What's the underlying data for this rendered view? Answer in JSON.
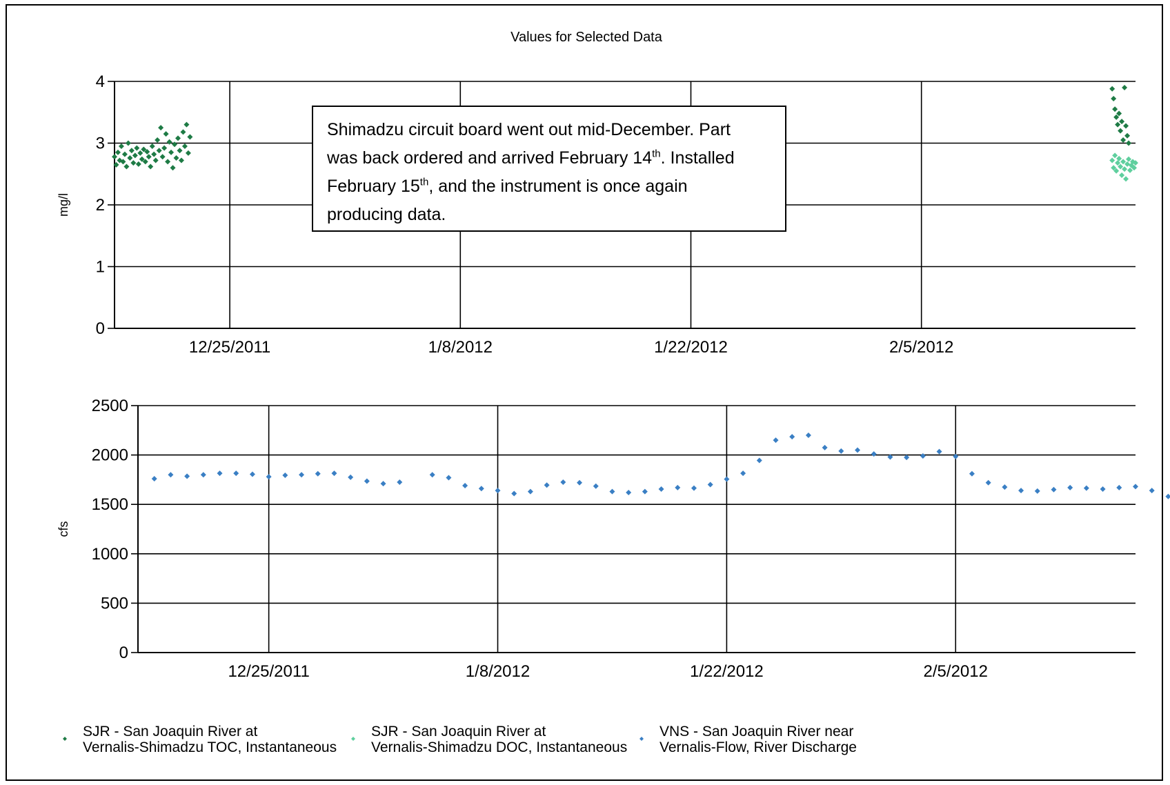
{
  "chart_data": [
    {
      "type": "scatter",
      "title": "Values for Selected Data",
      "ylabel": "mg/l",
      "ylim": [
        0,
        4
      ],
      "yticks": [
        "0",
        "1",
        "2",
        "3",
        "4"
      ],
      "xlim": [
        "2011-12-18",
        "2012-02-18"
      ],
      "xticks": [
        "12/25/2011",
        "1/8/2012",
        "1/22/2012",
        "2/5/2012"
      ],
      "xtick_dates": [
        "2011-12-25",
        "2012-01-08",
        "2012-01-22",
        "2012-02-05"
      ],
      "grid": true,
      "series": [
        {
          "name": "SJR - San Joaquin River at Vernalis-Shimadzu TOC, Instantaneous",
          "color": "#1e7b45",
          "points": [
            [
              "2011-12-18 00:00",
              2.78
            ],
            [
              "2011-12-18 02:30",
              2.65
            ],
            [
              "2011-12-18 05:00",
              2.85
            ],
            [
              "2011-12-18 07:30",
              2.72
            ],
            [
              "2011-12-18 10:00",
              2.95
            ],
            [
              "2011-12-18 12:30",
              2.7
            ],
            [
              "2011-12-18 15:00",
              2.82
            ],
            [
              "2011-12-18 17:30",
              2.62
            ],
            [
              "2011-12-18 20:00",
              3.0
            ],
            [
              "2011-12-18 22:30",
              2.76
            ],
            [
              "2011-12-19 01:00",
              2.88
            ],
            [
              "2011-12-19 03:30",
              2.68
            ],
            [
              "2011-12-19 06:00",
              2.8
            ],
            [
              "2011-12-19 08:30",
              2.92
            ],
            [
              "2011-12-19 11:00",
              2.66
            ],
            [
              "2011-12-19 13:30",
              2.84
            ],
            [
              "2011-12-19 16:00",
              2.74
            ],
            [
              "2011-12-19 18:30",
              2.9
            ],
            [
              "2011-12-19 21:00",
              2.7
            ],
            [
              "2011-12-19 23:30",
              2.86
            ],
            [
              "2011-12-20 02:00",
              2.78
            ],
            [
              "2011-12-20 04:30",
              2.62
            ],
            [
              "2011-12-20 07:00",
              2.95
            ],
            [
              "2011-12-20 09:30",
              2.82
            ],
            [
              "2011-12-20 12:00",
              2.72
            ],
            [
              "2011-12-20 14:30",
              3.05
            ],
            [
              "2011-12-20 17:00",
              2.88
            ],
            [
              "2011-12-20 19:30",
              3.25
            ],
            [
              "2011-12-20 22:00",
              2.78
            ],
            [
              "2011-12-21 00:30",
              2.92
            ],
            [
              "2011-12-21 03:00",
              3.15
            ],
            [
              "2011-12-21 05:30",
              2.7
            ],
            [
              "2011-12-21 08:00",
              3.02
            ],
            [
              "2011-12-21 10:30",
              2.85
            ],
            [
              "2011-12-21 13:00",
              2.6
            ],
            [
              "2011-12-21 15:30",
              2.98
            ],
            [
              "2011-12-21 18:00",
              2.76
            ],
            [
              "2011-12-21 20:30",
              3.08
            ],
            [
              "2011-12-21 23:00",
              2.88
            ],
            [
              "2011-12-22 01:30",
              2.72
            ],
            [
              "2011-12-22 04:00",
              3.18
            ],
            [
              "2011-12-22 06:30",
              2.95
            ],
            [
              "2011-12-22 09:00",
              3.3
            ],
            [
              "2011-12-22 11:30",
              2.84
            ],
            [
              "2011-12-22 14:00",
              3.1
            ]
          ]
        },
        {
          "name": "SJR - San Joaquin River at Vernalis-Shimadzu DOC, Instantaneous",
          "color": "#5fcf9e",
          "points": [
            [
              "2012-02-16 14:00",
              2.72
            ],
            [
              "2012-02-16 16:00",
              2.6
            ],
            [
              "2012-02-16 18:00",
              2.8
            ],
            [
              "2012-02-16 20:00",
              2.55
            ],
            [
              "2012-02-16 22:00",
              2.68
            ],
            [
              "2012-02-17 00:00",
              2.75
            ],
            [
              "2012-02-17 02:00",
              2.62
            ],
            [
              "2012-02-17 04:00",
              2.48
            ],
            [
              "2012-02-17 06:00",
              2.7
            ],
            [
              "2012-02-17 08:00",
              2.58
            ],
            [
              "2012-02-17 10:00",
              2.42
            ],
            [
              "2012-02-17 12:00",
              2.66
            ],
            [
              "2012-02-17 14:00",
              2.74
            ],
            [
              "2012-02-17 16:00",
              2.56
            ],
            [
              "2012-02-17 18:00",
              2.64
            ],
            [
              "2012-02-17 20:00",
              2.7
            ],
            [
              "2012-02-17 22:00",
              2.6
            ],
            [
              "2012-02-18 00:00",
              2.68
            ]
          ]
        },
        {
          "name": "SJR - San Joaquin River at Vernalis-Shimadzu TOC, Instantaneous",
          "color": "#1e7b45",
          "points": [
            [
              "2012-02-16 14:00",
              3.88
            ],
            [
              "2012-02-16 16:00",
              3.72
            ],
            [
              "2012-02-16 18:00",
              3.55
            ],
            [
              "2012-02-16 20:00",
              3.42
            ],
            [
              "2012-02-16 22:00",
              3.3
            ],
            [
              "2012-02-17 00:00",
              3.48
            ],
            [
              "2012-02-17 02:00",
              3.2
            ],
            [
              "2012-02-17 04:00",
              3.35
            ],
            [
              "2012-02-17 06:00",
              3.05
            ],
            [
              "2012-02-17 08:00",
              3.9
            ],
            [
              "2012-02-17 10:00",
              3.28
            ],
            [
              "2012-02-17 12:00",
              3.12
            ],
            [
              "2012-02-17 14:00",
              3.0
            ]
          ]
        }
      ],
      "annotation": {
        "line1": "Shimadzu circuit board went out mid-December.  Part",
        "line2a": "was back ordered and arrived February 14",
        "line2sup": "th",
        "line2b": ".  Installed",
        "line3a": "February 15",
        "line3sup": "th",
        "line3b": ", and the instrument is once again",
        "line4": "producing data."
      }
    },
    {
      "type": "scatter",
      "ylabel": "cfs",
      "ylim": [
        0,
        2500
      ],
      "yticks": [
        "0",
        "500",
        "1000",
        "1500",
        "2000",
        "2500"
      ],
      "xlim": [
        "2011-12-17",
        "2012-02-16"
      ],
      "xticks": [
        "12/25/2011",
        "1/8/2012",
        "1/22/2012",
        "2/5/2012"
      ],
      "xtick_dates": [
        "2011-12-25",
        "2012-01-08",
        "2012-01-22",
        "2012-02-05"
      ],
      "grid": true,
      "series": [
        {
          "name": "VNS - San Joaquin River near Vernalis-Flow, River Discharge",
          "color": "#3a7fc4",
          "points": [
            [
              "2011-12-18",
              1760
            ],
            [
              "2011-12-19",
              1800
            ],
            [
              "2011-12-20",
              1785
            ],
            [
              "2011-12-21",
              1800
            ],
            [
              "2011-12-22",
              1815
            ],
            [
              "2011-12-23",
              1815
            ],
            [
              "2011-12-24",
              1805
            ],
            [
              "2011-12-25",
              1780
            ],
            [
              "2011-12-26",
              1795
            ],
            [
              "2011-12-27",
              1800
            ],
            [
              "2011-12-28",
              1810
            ],
            [
              "2011-12-29",
              1815
            ],
            [
              "2011-12-30",
              1775
            ],
            [
              "2011-12-31",
              1735
            ],
            [
              "2012-01-01",
              1710
            ],
            [
              "2012-01-02",
              1725
            ],
            [
              "2012-01-04",
              1800
            ],
            [
              "2012-01-05",
              1770
            ],
            [
              "2012-01-06",
              1690
            ],
            [
              "2012-01-07",
              1660
            ],
            [
              "2012-01-08",
              1640
            ],
            [
              "2012-01-09",
              1610
            ],
            [
              "2012-01-10",
              1630
            ],
            [
              "2012-01-11",
              1695
            ],
            [
              "2012-01-12",
              1725
            ],
            [
              "2012-01-13",
              1720
            ],
            [
              "2012-01-14",
              1685
            ],
            [
              "2012-01-15",
              1630
            ],
            [
              "2012-01-16",
              1620
            ],
            [
              "2012-01-17",
              1630
            ],
            [
              "2012-01-18",
              1655
            ],
            [
              "2012-01-19",
              1670
            ],
            [
              "2012-01-20",
              1665
            ],
            [
              "2012-01-21",
              1700
            ],
            [
              "2012-01-22",
              1755
            ],
            [
              "2012-01-23",
              1815
            ],
            [
              "2012-01-24",
              1945
            ],
            [
              "2012-01-25",
              2150
            ],
            [
              "2012-01-26",
              2185
            ],
            [
              "2012-01-27",
              2200
            ],
            [
              "2012-01-28",
              2075
            ],
            [
              "2012-01-29",
              2040
            ],
            [
              "2012-01-30",
              2050
            ],
            [
              "2012-01-31",
              2010
            ],
            [
              "2012-02-01",
              1980
            ],
            [
              "2012-02-02",
              1975
            ],
            [
              "2012-02-03",
              1990
            ],
            [
              "2012-02-04",
              2035
            ],
            [
              "2012-02-05",
              1985
            ],
            [
              "2012-02-06",
              1810
            ],
            [
              "2012-02-07",
              1720
            ],
            [
              "2012-02-08",
              1675
            ],
            [
              "2012-02-09",
              1640
            ],
            [
              "2012-02-10",
              1635
            ],
            [
              "2012-02-11",
              1650
            ],
            [
              "2012-02-12",
              1670
            ],
            [
              "2012-02-13",
              1665
            ],
            [
              "2012-02-14",
              1655
            ],
            [
              "2012-02-15",
              1670
            ],
            [
              "2012-02-16",
              1680
            ],
            [
              "2012-02-17",
              1640
            ],
            [
              "2012-02-18",
              1580
            ]
          ]
        }
      ]
    }
  ],
  "legend": {
    "items": [
      {
        "line1": "SJR - San Joaquin River at",
        "line2": "Vernalis-Shimadzu TOC, Instantaneous",
        "color": "#1e7b45"
      },
      {
        "line1": "SJR - San Joaquin River at",
        "line2": "Vernalis-Shimadzu DOC, Instantaneous",
        "color": "#5fcf9e"
      },
      {
        "line1": "VNS - San Joaquin River near",
        "line2": "Vernalis-Flow, River Discharge",
        "color": "#3a7fc4"
      }
    ]
  }
}
